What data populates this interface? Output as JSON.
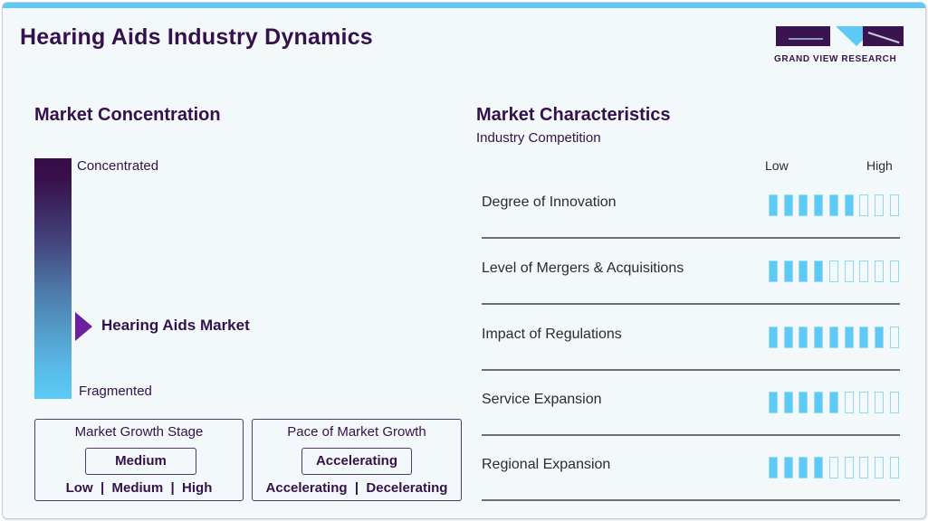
{
  "header": {
    "title": "Hearing Aids Industry Dynamics",
    "logo_text": "GRAND VIEW RESEARCH"
  },
  "market_concentration": {
    "title": "Market Concentration",
    "top_label": "Concentrated",
    "bottom_label": "Fragmented",
    "marker_label": "Hearing Aids Market"
  },
  "growth_stage": {
    "title": "Market Growth Stage",
    "value": "Medium",
    "options": "Low  |  Medium  |  High"
  },
  "growth_pace": {
    "title": "Pace of Market Growth",
    "value": "Accelerating",
    "options": "Accelerating  |  Decelerating"
  },
  "market_characteristics": {
    "title": "Market Characteristics",
    "subtitle": "Industry Competition",
    "scale_low": "Low",
    "scale_high": "High",
    "rows": [
      {
        "label": "Degree of Innovation",
        "filled": 6,
        "total": 9
      },
      {
        "label": "Level of Mergers & Acquisitions",
        "filled": 4,
        "total": 9
      },
      {
        "label": "Impact of Regulations",
        "filled": 8,
        "total": 9
      },
      {
        "label": "Service Expansion",
        "filled": 5,
        "total": 9
      },
      {
        "label": "Regional Expansion",
        "filled": 4,
        "total": 9
      }
    ]
  },
  "colors": {
    "brand_dark": "#35114b",
    "accent_cyan": "#5ccaf5",
    "marker_purple": "#6e20a0"
  },
  "chart_data": {
    "type": "table",
    "title": "Hearing Aids Industry Dynamics",
    "market_concentration": {
      "scale": [
        "Fragmented",
        "Concentrated"
      ],
      "position": "Hearing Aids Market",
      "approx_level": 0.3
    },
    "market_growth_stage": {
      "value": "Medium",
      "options": [
        "Low",
        "Medium",
        "High"
      ]
    },
    "pace_of_market_growth": {
      "value": "Accelerating",
      "options": [
        "Accelerating",
        "Decelerating"
      ]
    },
    "market_characteristics": {
      "subtitle": "Industry Competition",
      "scale": [
        "Low",
        "High"
      ],
      "max": 9,
      "categories": [
        "Degree of Innovation",
        "Level of Mergers & Acquisitions",
        "Impact of Regulations",
        "Service Expansion",
        "Regional Expansion"
      ],
      "values": [
        6,
        4,
        8,
        5,
        4
      ]
    }
  }
}
